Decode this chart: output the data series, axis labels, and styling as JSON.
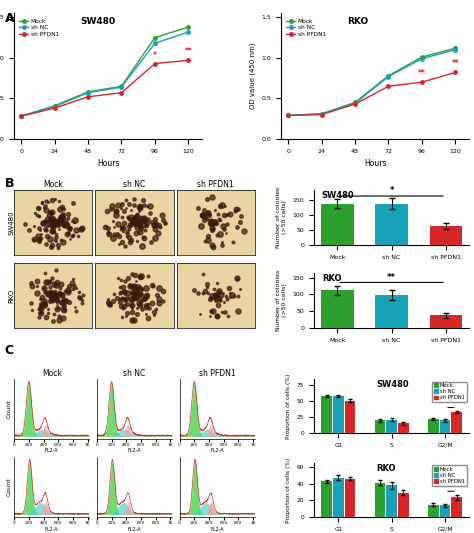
{
  "line_x": [
    0,
    24,
    48,
    72,
    96,
    120
  ],
  "sw480_mock": [
    0.28,
    0.41,
    0.58,
    0.65,
    1.25,
    1.38
  ],
  "sw480_shnc": [
    0.28,
    0.4,
    0.57,
    0.64,
    1.18,
    1.32
  ],
  "sw480_shpfdn1": [
    0.28,
    0.38,
    0.52,
    0.57,
    0.93,
    0.97
  ],
  "rko_mock": [
    0.29,
    0.31,
    0.45,
    0.78,
    1.01,
    1.12
  ],
  "rko_shnc": [
    0.29,
    0.31,
    0.44,
    0.77,
    0.99,
    1.1
  ],
  "rko_shpfdn1": [
    0.29,
    0.3,
    0.43,
    0.65,
    0.7,
    0.82
  ],
  "color_mock": "#2ca02c",
  "color_shnc": "#17a2b8",
  "color_shpfdn1": "#d62728",
  "sw480_bar_mock": 138,
  "sw480_bar_shnc": 138,
  "sw480_bar_pfdn1": 65,
  "sw480_bar_mock_err": 15,
  "sw480_bar_shnc_err": 18,
  "sw480_bar_pfdn1_err": 10,
  "rko_bar_mock": 112,
  "rko_bar_shnc": 97,
  "rko_bar_pfdn1": 38,
  "rko_bar_mock_err": 14,
  "rko_bar_shnc_err": 15,
  "rko_bar_pfdn1_err": 8,
  "bar_color_mock": "#2ca02c",
  "bar_color_shnc": "#17a2b8",
  "bar_color_pfdn1": "#d62728",
  "sw480_g1_mock": 58,
  "sw480_g1_shnc": 58,
  "sw480_g1_pfdn1": 51,
  "sw480_s_mock": 20,
  "sw480_s_shnc": 21,
  "sw480_s_pfdn1": 15,
  "sw480_g2m_mock": 22,
  "sw480_g2m_shnc": 20,
  "sw480_g2m_pfdn1": 33,
  "sw480_g1_err": [
    2,
    2,
    2
  ],
  "sw480_s_err": [
    2,
    2,
    2
  ],
  "sw480_g2m_err": [
    2,
    2,
    2
  ],
  "rko_g1_mock": 43,
  "rko_g1_shnc": 47,
  "rko_g1_pfdn1": 46,
  "rko_s_mock": 41,
  "rko_s_shnc": 38,
  "rko_s_pfdn1": 29,
  "rko_g2m_mock": 15,
  "rko_g2m_shnc": 14,
  "rko_g2m_pfdn1": 24,
  "rko_g1_err": [
    2,
    3,
    2
  ],
  "rko_s_err": [
    3,
    4,
    3
  ],
  "rko_g2m_err": [
    2,
    2,
    3
  ],
  "dish_bg": "#e8d5a3",
  "dish_border": "#b8860b"
}
